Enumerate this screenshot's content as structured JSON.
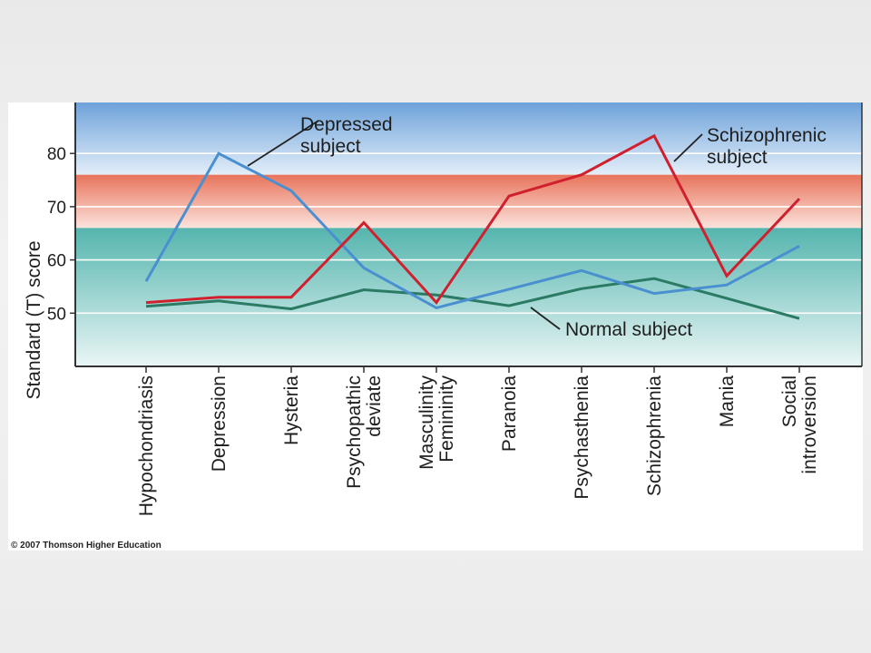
{
  "chart_data": {
    "type": "line",
    "ylabel": "Standard (T) score",
    "ylim": [
      40,
      90
    ],
    "yticks": [
      50,
      60,
      70,
      80
    ],
    "categories": [
      [
        "Hypochondriasis"
      ],
      [
        "Depression"
      ],
      [
        "Hysteria"
      ],
      [
        "Psychopathic",
        "deviate"
      ],
      [
        "Masculinity",
        "Femininity"
      ],
      [
        "Paranoia"
      ],
      [
        "Psychasthenia"
      ],
      [
        "Schizophrenia"
      ],
      [
        "Mania"
      ],
      [
        "Social",
        "introversion"
      ]
    ],
    "bands": [
      {
        "from": 76,
        "to": 90,
        "color": "#6fa4dc"
      },
      {
        "from": 66,
        "to": 76,
        "color": "#e87a62"
      },
      {
        "from": 40,
        "to": 66,
        "color": "#58b8b2"
      }
    ],
    "series": [
      {
        "name": [
          "Depressed",
          "subject"
        ],
        "color": "#4a90d0",
        "values": [
          56,
          80,
          73,
          58.5,
          51,
          54.5,
          58,
          53.7,
          55.3,
          62.6
        ]
      },
      {
        "name": [
          "Schizophrenic",
          "subject"
        ],
        "color": "#d0202e",
        "values": [
          52,
          53,
          53,
          67,
          52,
          72,
          76,
          83.3,
          57,
          71.5
        ]
      },
      {
        "name": [
          "Normal subject"
        ],
        "color": "#2a7a64",
        "values": [
          51.3,
          52.3,
          50.8,
          54.4,
          53.4,
          51.4,
          54.6,
          56.5,
          52.8,
          49
        ]
      }
    ]
  },
  "copyright": "© 2007 Thomson Higher Education"
}
